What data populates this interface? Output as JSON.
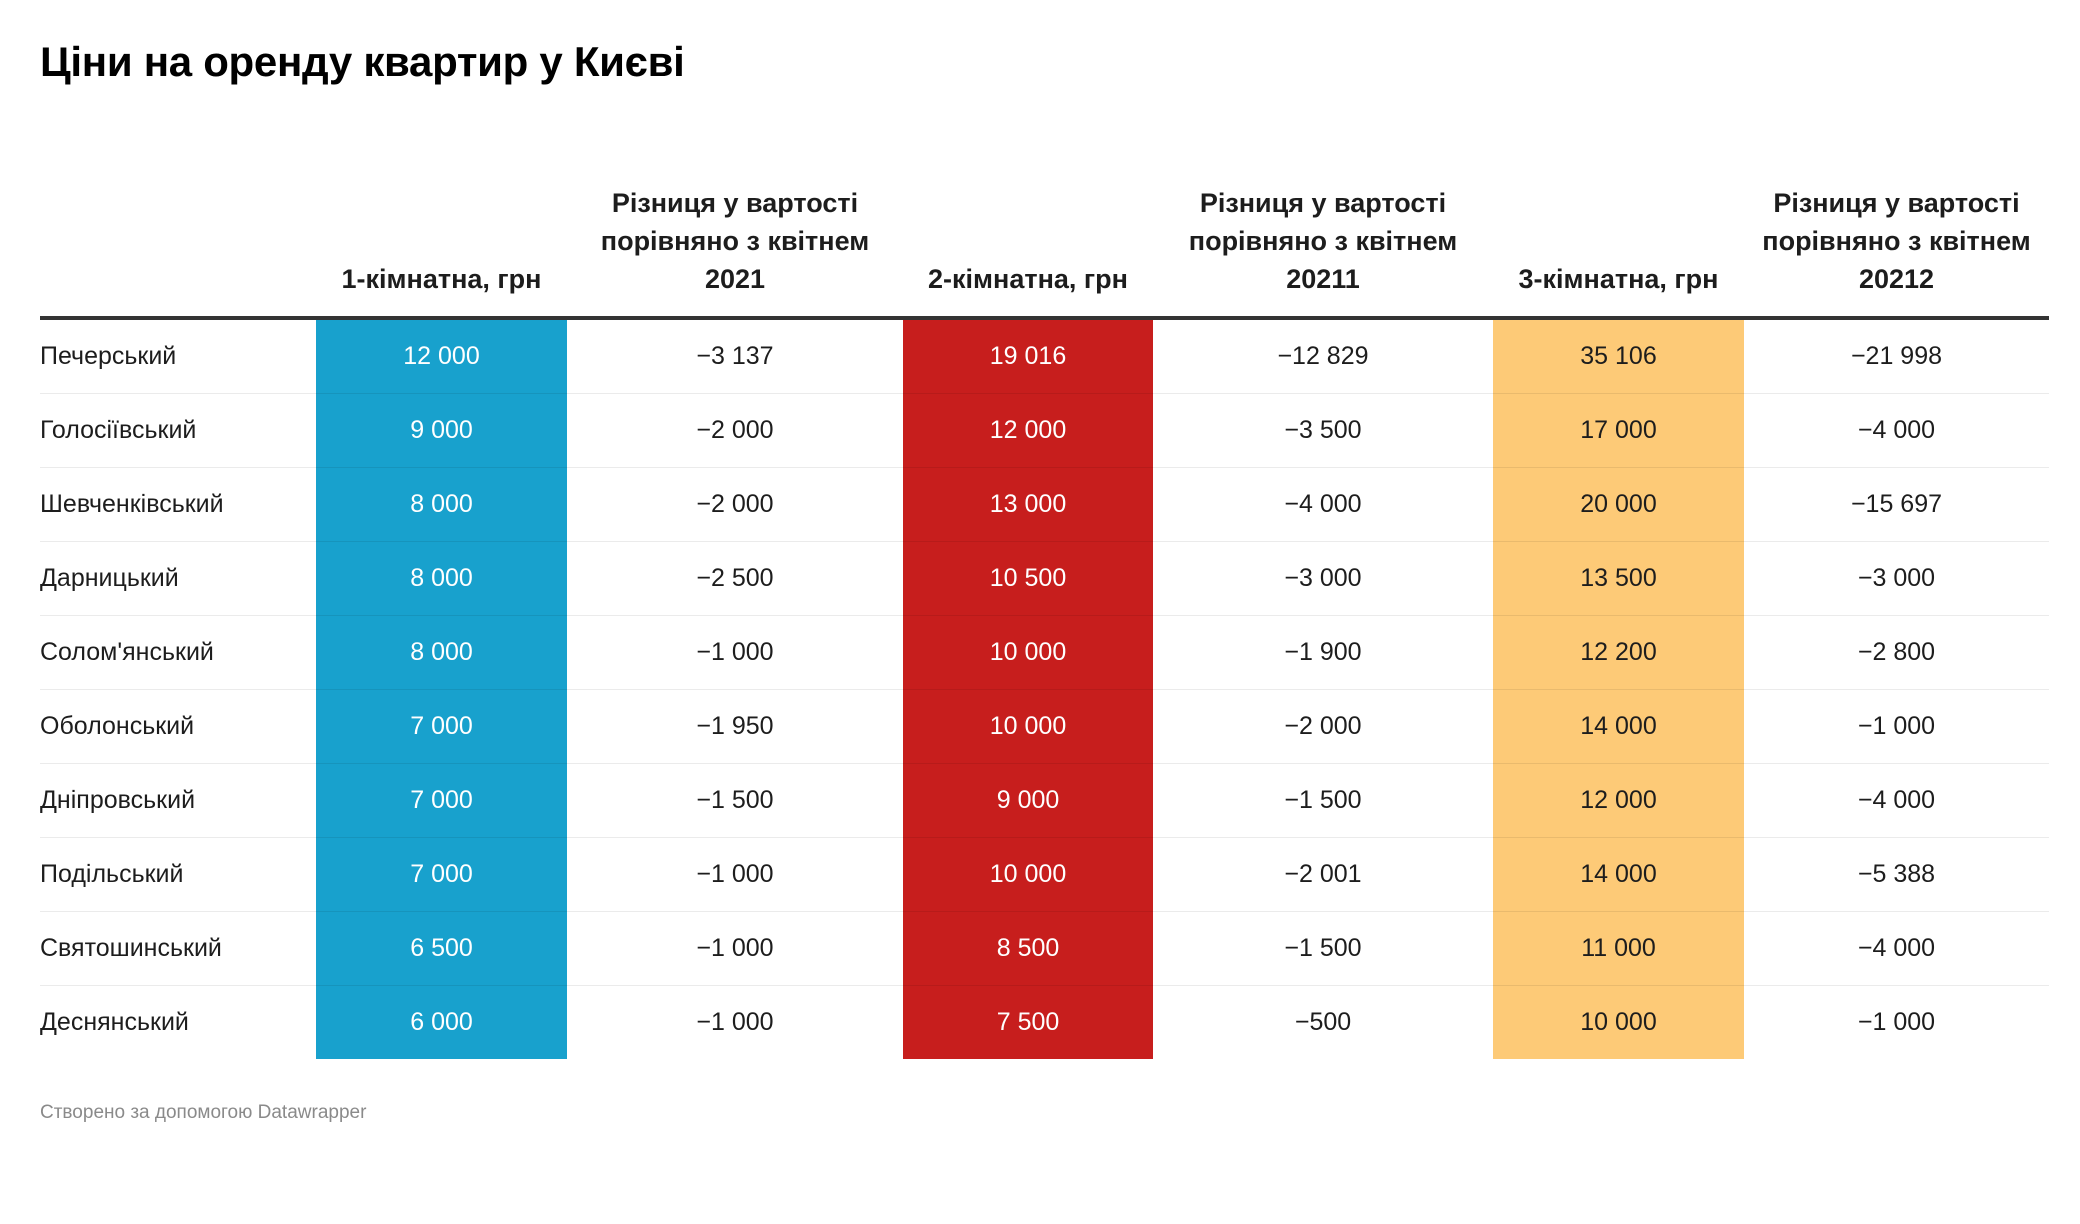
{
  "title": "Ціни на оренду квартир у Києві",
  "chart_data": {
    "type": "table",
    "columns": [
      "",
      "1-кімнатна, грн",
      "Різниця у вартості порівняно з квітнем 2021",
      "2-кімнатна, грн",
      "Різниця у вартості порівняно з квітнем 20211",
      "3-кімнатна, грн",
      "Різниця у вартості порівняно з квітнем 20212"
    ],
    "column_colors": [
      "",
      "#18a1cd",
      "",
      "#c71e1d",
      "",
      "#fdca77",
      ""
    ],
    "rows": [
      [
        "Печерський",
        "12 000",
        "−3 137",
        "19 016",
        "−12 829",
        "35 106",
        "−21 998"
      ],
      [
        "Голосіївський",
        "9 000",
        "−2 000",
        "12 000",
        "−3 500",
        "17 000",
        "−4 000"
      ],
      [
        "Шевченківський",
        "8 000",
        "−2 000",
        "13 000",
        "−4 000",
        "20 000",
        "−15 697"
      ],
      [
        "Дарницький",
        "8 000",
        "−2 500",
        "10 500",
        "−3 000",
        "13 500",
        "−3 000"
      ],
      [
        "Солом'янський",
        "8 000",
        "−1 000",
        "10 000",
        "−1 900",
        "12 200",
        "−2 800"
      ],
      [
        "Оболонський",
        "7 000",
        "−1 950",
        "10 000",
        "−2 000",
        "14 000",
        "−1 000"
      ],
      [
        "Дніпровський",
        "7 000",
        "−1 500",
        "9 000",
        "−1 500",
        "12 000",
        "−4 000"
      ],
      [
        "Подільський",
        "7 000",
        "−1 000",
        "10 000",
        "−2 001",
        "14 000",
        "−5 388"
      ],
      [
        "Святошинський",
        "6 500",
        "−1 000",
        "8 500",
        "−1 500",
        "11 000",
        "−4 000"
      ],
      [
        "Деснянський",
        "6 000",
        "−1 000",
        "7 500",
        "−500",
        "10 000",
        "−1 000"
      ]
    ]
  },
  "footer": "Створено за допомогою Datawrapper"
}
